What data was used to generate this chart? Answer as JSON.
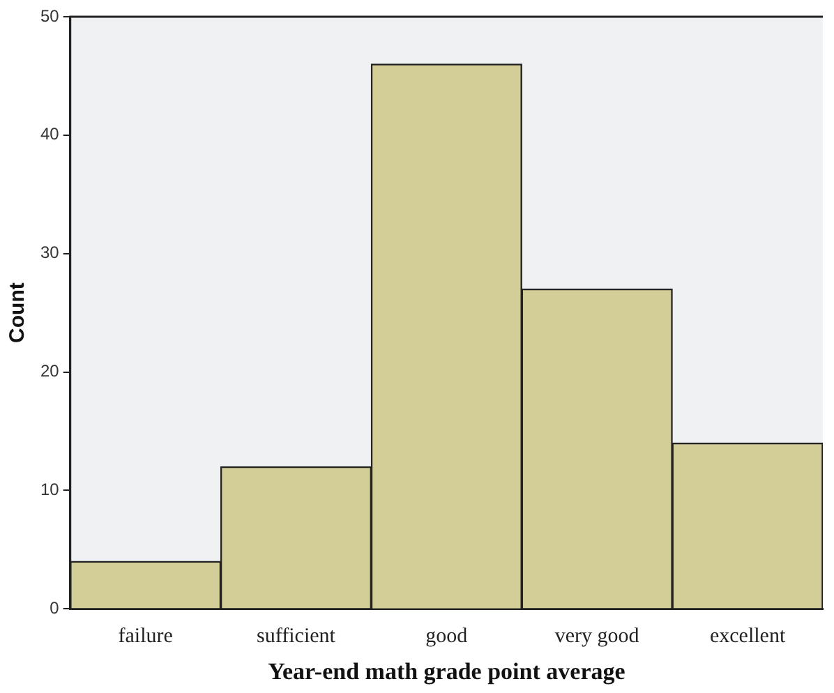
{
  "chart_data": {
    "type": "bar",
    "xlabel": "Year-end math grade point average",
    "ylabel": "Count",
    "categories": [
      "failure",
      "sufficient",
      "good",
      "very good",
      "excellent"
    ],
    "values": [
      4,
      12,
      46,
      27,
      14
    ],
    "color": "#d3ce97",
    "ylim": [
      0,
      50
    ],
    "yticks": [
      0,
      10,
      20,
      30,
      40,
      50
    ],
    "grid": false,
    "legend": false
  }
}
